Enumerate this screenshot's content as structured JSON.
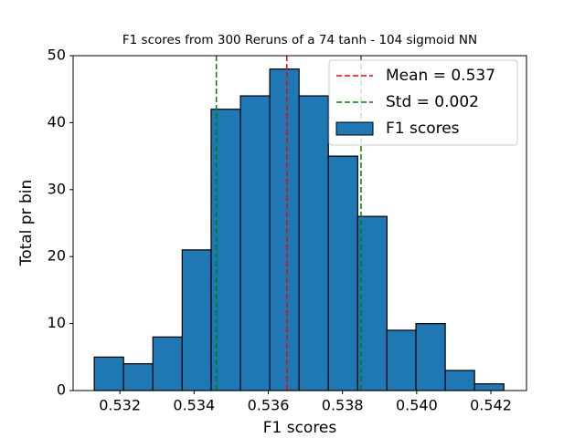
{
  "chart_data": {
    "type": "histogram",
    "title": "F1 scores from 300 Reruns of a 74 tanh - 104 sigmoid NN",
    "xlabel": "F1 scores",
    "ylabel": "Total pr bin",
    "bins": [
      0.53131,
      0.5321,
      0.53289,
      0.53368,
      0.53446,
      0.53525,
      0.53604,
      0.53683,
      0.53762,
      0.53841,
      0.5392,
      0.53998,
      0.54077,
      0.54156,
      0.54235
    ],
    "series": [
      {
        "name": "F1 scores",
        "color": "#1f77b4",
        "edgecolor": "#000000",
        "values": [
          5,
          4,
          8,
          21,
          42,
          44,
          48,
          44,
          35,
          26,
          9,
          10,
          3,
          1
        ]
      }
    ],
    "lines": [
      {
        "name": "Mean = 0.537",
        "color": "#ff0000",
        "values": [
          0.5365
        ]
      },
      {
        "name": "Std = 0.002",
        "color": "#008000",
        "values": [
          0.5346,
          0.5385
        ]
      }
    ],
    "xlim": [
      0.53074,
      0.54296
    ],
    "ylim": [
      0,
      50
    ],
    "xticks": [
      0.532,
      0.534,
      0.536,
      0.538,
      {
        "value": 0.54,
        "label": "0.540"
      },
      0.542
    ],
    "yticks": [
      0,
      10,
      20,
      30,
      40,
      50
    ],
    "grid": false,
    "legend": "upper right"
  }
}
